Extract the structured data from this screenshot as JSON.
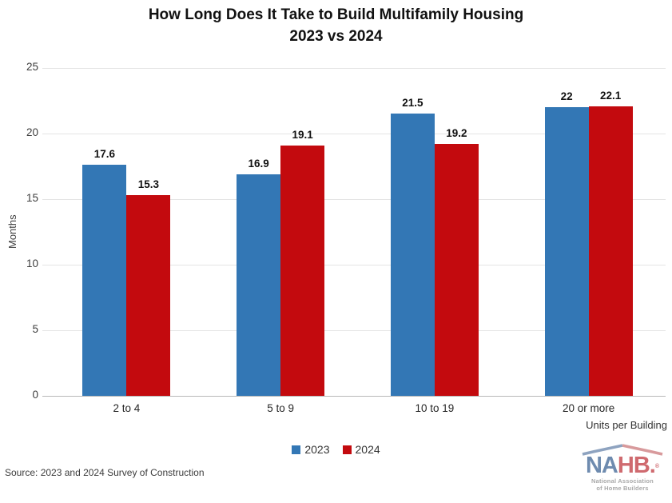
{
  "title": {
    "line1": "How Long Does It Take to Build Multifamily Housing",
    "line2": "2023 vs 2024"
  },
  "chart_data": {
    "type": "bar",
    "title": "How Long Does It Take to Build Multifamily Housing 2023 vs 2024",
    "categories": [
      "2 to 4",
      "5 to 9",
      "10 to 19",
      "20 or more"
    ],
    "series": [
      {
        "name": "2023",
        "color": "#3377B5",
        "values": [
          17.6,
          16.9,
          21.5,
          22
        ]
      },
      {
        "name": "2024",
        "color": "#C30A0E",
        "values": [
          15.3,
          19.1,
          19.2,
          22.1
        ]
      }
    ],
    "xlabel": "Units per Building",
    "ylabel": "Months",
    "ylim": [
      0,
      25
    ],
    "yticks": [
      0,
      5,
      10,
      15,
      20,
      25
    ],
    "grid": true,
    "legend_position": "bottom-center"
  },
  "colors": {
    "gridline": "#E4E4E4",
    "baseline": "#B8B8B8",
    "value_label": "#111111",
    "tick_label": "#3D3D3D",
    "category_label": "#262626"
  },
  "footnote": {
    "source": "Source: 2023 and 2024 Survey of Construction"
  },
  "logo": {
    "na": "NA",
    "hb": "HB.",
    "reg": "®",
    "star": "★",
    "line1": "National Association",
    "line2": "of Home Builders"
  }
}
